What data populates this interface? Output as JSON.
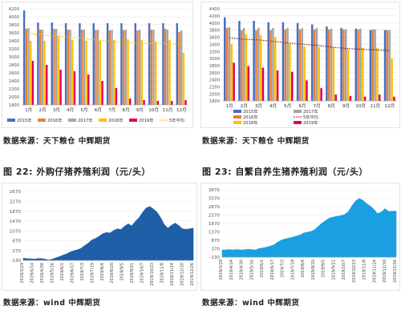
{
  "captions": {
    "fig22": "图 22: 外购仔猪养殖利润（元/头）",
    "fig23": "图 23: 自繁自养生猪养殖利润（元/头）"
  },
  "sources": {
    "top_left": "数据来源：天下粮仓  中辉期货",
    "top_right": "数据来源：天下粮仓  中辉期货",
    "bottom_left": "数据来源：wind  中辉期货",
    "bottom_right": "数据来源：wind  中辉期货"
  },
  "colors": {
    "s2015": "#4472c4",
    "s2016": "#ed7d31",
    "s2017": "#a5a5a5",
    "s2018": "#ffc000",
    "s2019": "#e0005a",
    "avg5": "#ffc000",
    "avg5_right": "#7b2b3a",
    "area_left": "#1f5fa8",
    "area_right": "#1aa0e0"
  },
  "chart_data": [
    {
      "type": "bar",
      "categories": [
        "1月",
        "2月",
        "3月",
        "4月",
        "5月",
        "6月",
        "7月",
        "8月",
        "9月",
        "10月",
        "11月",
        "12月"
      ],
      "ylim": [
        1800,
        4200
      ],
      "yticks": [
        1800,
        2000,
        2200,
        2400,
        2600,
        2800,
        3000,
        3200,
        3400,
        3600,
        3800,
        4000,
        4200
      ],
      "series": [
        {
          "name": "2015年",
          "values": [
            4160,
            3860,
            3860,
            3840,
            3840,
            3840,
            3840,
            3840,
            3840,
            3840,
            3840,
            3840
          ]
        },
        {
          "name": "2016年",
          "values": [
            3700,
            3680,
            3700,
            3680,
            3680,
            3670,
            3660,
            3670,
            3660,
            3680,
            3700,
            3620
          ]
        },
        {
          "name": "2017年",
          "values": [
            3720,
            3680,
            3700,
            3680,
            3680,
            3680,
            3680,
            3680,
            3680,
            3680,
            3680,
            3660
          ]
        },
        {
          "name": "2018年",
          "values": [
            3400,
            3400,
            3500,
            3420,
            3400,
            3400,
            3420,
            3440,
            3420,
            3380,
            3420,
            3100
          ]
        },
        {
          "name": "2019年",
          "values": [
            2900,
            2800,
            2680,
            2640,
            2560,
            2400,
            2220,
            1960,
            1920,
            1900,
            1900,
            1920
          ]
        }
      ],
      "avg_line": {
        "name": "5年平均",
        "values": [
          3580,
          3540,
          3520,
          3490,
          3460,
          3420,
          3380,
          3350,
          3340,
          3340,
          3330,
          3300
        ]
      }
    },
    {
      "type": "bar",
      "categories": [
        "1月",
        "2月",
        "3月",
        "4月",
        "5月",
        "6月",
        "7月",
        "8月",
        "9月",
        "10月",
        "11月",
        "12月"
      ],
      "ylim": [
        1800,
        4400
      ],
      "yticks": [
        1800,
        2000,
        2200,
        2400,
        2600,
        2800,
        3000,
        3200,
        3400,
        3600,
        3800,
        4000,
        4200,
        4400
      ],
      "series": [
        {
          "name": "2015年",
          "values": [
            4160,
            4060,
            4060,
            4020,
            4020,
            4000,
            3960,
            3900,
            3860,
            3840,
            3800,
            3800
          ]
        },
        {
          "name": "2016年",
          "values": [
            3860,
            3800,
            3800,
            3800,
            3820,
            3820,
            3820,
            3820,
            3820,
            3820,
            3820,
            3800
          ]
        },
        {
          "name": "2017年",
          "values": [
            3880,
            3860,
            3860,
            3860,
            3860,
            3860,
            3860,
            3840,
            3820,
            3840,
            3820,
            3800
          ]
        },
        {
          "name": "2018年",
          "values": [
            3400,
            3680,
            3660,
            3600,
            3420,
            3340,
            3320,
            3300,
            3260,
            3300,
            3300,
            3000
          ]
        },
        {
          "name": "2019年",
          "values": [
            2880,
            2780,
            2740,
            2660,
            2620,
            2380,
            2160,
            1980,
            1940,
            1920,
            1980,
            1920
          ]
        }
      ],
      "avg_line": {
        "name": "5年平均",
        "values": [
          3580,
          3540,
          3520,
          3480,
          3440,
          3400,
          3370,
          3320,
          3280,
          3260,
          3240,
          3220
        ]
      }
    },
    {
      "type": "area",
      "ylim": [
        -130,
        2670
      ],
      "yticks": [
        -130,
        270,
        670,
        1070,
        1470,
        1870,
        2270,
        2670
      ],
      "xticks": [
        "2019/3/29",
        "2019/4/14",
        "2019/4/30",
        "2019/5/16",
        "2019/6/1",
        "2019/6/17",
        "2019/7/3",
        "2019/7/19",
        "2019/8/4",
        "2019/8/20",
        "2019/9/5",
        "2019/9/21",
        "2019/10/7",
        "2019/10/23",
        "2019/11/8",
        "2019/11/24",
        "2019/12/10",
        "2019/12/26"
      ],
      "values": [
        -50,
        -60,
        -70,
        -80,
        -60,
        -60,
        -80,
        -120,
        -80,
        -30,
        20,
        80,
        130,
        210,
        260,
        300,
        360,
        470,
        570,
        700,
        760,
        850,
        950,
        1000,
        980,
        1080,
        1150,
        1120,
        1250,
        1350,
        1270,
        1450,
        1600,
        1820,
        2000,
        2050,
        1950,
        1820,
        1600,
        1320,
        1180,
        1300,
        1380,
        1280,
        1150,
        1130,
        1150,
        1180
      ]
    },
    {
      "type": "area",
      "ylim": [
        -130,
        3870
      ],
      "yticks": [
        -130,
        370,
        870,
        1370,
        1870,
        2370,
        2870,
        3370,
        3870
      ],
      "xticks": [
        "2019/3/29",
        "2019/4/14",
        "2019/4/30",
        "2019/5/16",
        "2019/6/1",
        "2019/6/17",
        "2019/7/3",
        "2019/7/19",
        "2019/8/4",
        "2019/8/20",
        "2019/9/5",
        "2019/9/21",
        "2019/10/7",
        "2019/10/23",
        "2019/11/8",
        "2019/11/24",
        "2019/12/10",
        "2019/12/26"
      ],
      "values": [
        300,
        300,
        320,
        300,
        320,
        300,
        310,
        330,
        320,
        300,
        380,
        420,
        460,
        520,
        600,
        760,
        880,
        950,
        1000,
        1050,
        1120,
        1180,
        1300,
        1350,
        1400,
        1500,
        1700,
        1900,
        2050,
        2200,
        2250,
        2300,
        2330,
        2400,
        2550,
        2900,
        3200,
        3350,
        3250,
        3050,
        2900,
        2700,
        2450,
        2550,
        2750,
        2580,
        2600,
        2600
      ]
    }
  ]
}
